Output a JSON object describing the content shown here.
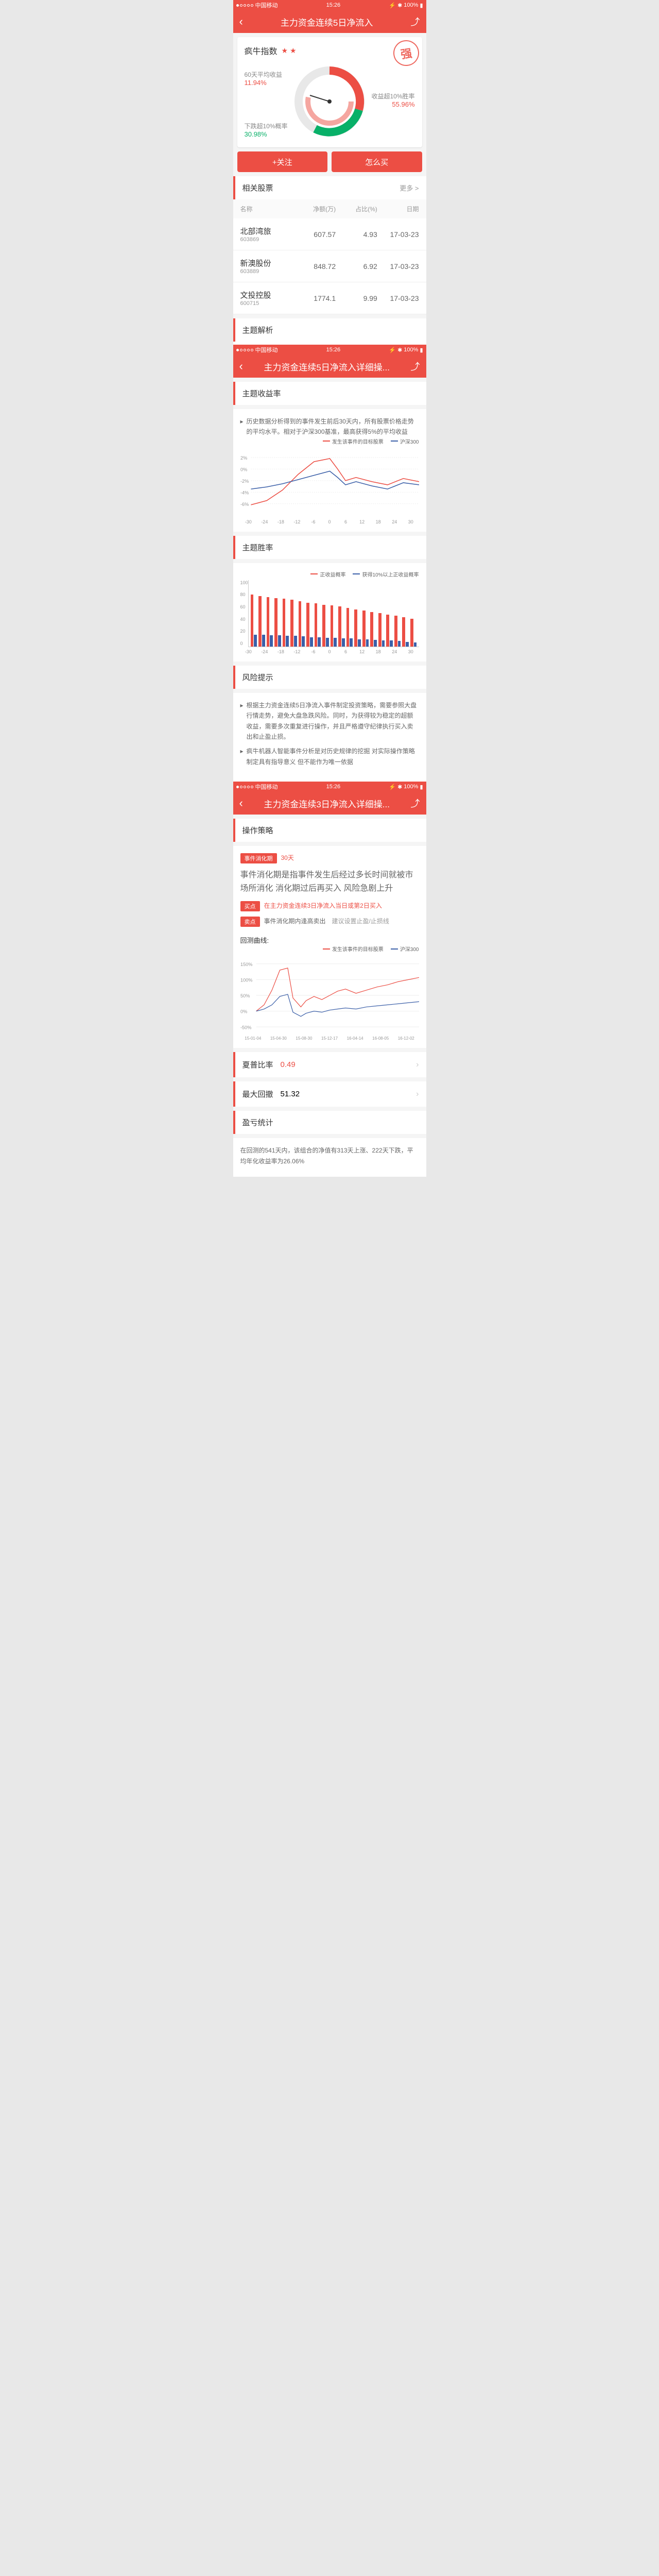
{
  "status": {
    "carrier": "中国移动",
    "time": "15:26",
    "battery": "100%"
  },
  "screen1": {
    "title": "主力资金连续5日净流入",
    "indexName": "疯牛指数",
    "stars": "★ ★",
    "stamp": "强",
    "metrics": {
      "avg60": {
        "label": "60天平均收益",
        "value": "11.94%",
        "color": "#ec4e44"
      },
      "winRate": {
        "label": "收益超10%胜率",
        "value": "55.96%",
        "color": "#ec4e44"
      },
      "dropRate": {
        "label": "下跌超10%概率",
        "value": "30.98%",
        "color": "#08b068"
      }
    },
    "gauge": {
      "c1": "#ec4e44",
      "c2": "#08b068",
      "c3": "#f5a6a0",
      "bg": "#e8e8e8"
    },
    "buttons": {
      "follow": "+关注",
      "howBuy": "怎么买"
    },
    "stocks": {
      "header": "相关股票",
      "more": "更多 >",
      "cols": [
        "名称",
        "净额(万)",
        "占比(%)",
        "日期"
      ],
      "rows": [
        {
          "name": "北部湾旅",
          "code": "603869",
          "v1": "607.57",
          "v2": "4.93",
          "v3": "17-03-23"
        },
        {
          "name": "新澳股份",
          "code": "603889",
          "v1": "848.72",
          "v2": "6.92",
          "v3": "17-03-23"
        },
        {
          "name": "文投控股",
          "code": "600715",
          "v1": "1774.1",
          "v2": "9.99",
          "v3": "17-03-23"
        }
      ]
    },
    "analysis": "主题解析"
  },
  "screen2": {
    "title": "主力资金连续5日净流入详细操...",
    "yield": {
      "header": "主题收益率",
      "desc": "历史数据分析得到的事件发生前后30天内，所有股票价格走势的平均水平。相对于沪深300基准，最高获得5%的平均收益",
      "legend": [
        {
          "label": "发生该事件的目标股票",
          "color": "#ec4e44"
        },
        {
          "label": "沪深300",
          "color": "#3b5fa8"
        }
      ],
      "yTicks": [
        "2%",
        "0%",
        "-2%",
        "-4%",
        "-6%"
      ],
      "xTicks": [
        "-30",
        "-24",
        "-18",
        "-12",
        "-6",
        "0",
        "6",
        "12",
        "18",
        "24",
        "30"
      ]
    },
    "winSection": {
      "header": "主题胜率",
      "legend": [
        {
          "label": "正收益概率",
          "color": "#ec4e44"
        },
        {
          "label": "获得10%以上正收益概率",
          "color": "#3b5fa8"
        }
      ],
      "yMax": 100,
      "bars": [
        [
          78,
          18
        ],
        [
          76,
          18
        ],
        [
          74,
          17
        ],
        [
          73,
          17
        ],
        [
          72,
          16
        ],
        [
          70,
          16
        ],
        [
          68,
          15
        ],
        [
          66,
          14
        ],
        [
          65,
          14
        ],
        [
          63,
          13
        ],
        [
          62,
          13
        ],
        [
          60,
          12
        ],
        [
          58,
          12
        ],
        [
          56,
          11
        ],
        [
          54,
          11
        ],
        [
          52,
          10
        ],
        [
          50,
          9
        ],
        [
          48,
          9
        ],
        [
          46,
          8
        ],
        [
          44,
          7
        ],
        [
          42,
          6
        ]
      ],
      "xTicks": [
        "-30",
        "-24",
        "-18",
        "-12",
        "-6",
        "0",
        "6",
        "12",
        "18",
        "24",
        "30"
      ]
    },
    "risk": {
      "header": "风险提示",
      "bullets": [
        "根据主力资金连续5日净流入事件制定投资策略，需要参照大盘行情走势，避免大盘急跌风险。同时，为获得较为稳定的超额收益，需要多次重复进行操作，并且严格遵守纪律执行买入卖出和止盈止损。",
        "疯牛机器人智能事件分析是对历史规律的挖掘 对实际操作策略制定具有指导意义 但不能作为唯一依据"
      ]
    }
  },
  "screen3": {
    "title": "主力资金连续3日净流入详细操...",
    "strategy": {
      "header": "操作策略",
      "period": {
        "tag": "事件消化期",
        "value": "30天",
        "desc": "事件消化期是指事件发生后经过多长时间就被市场所消化 消化期过后再买入 风险急剧上升"
      },
      "buy": {
        "tag": "买点",
        "text": "在主力资金连续3日净流入当日或第2日买入"
      },
      "sell": {
        "tag": "卖点",
        "text": "事件消化期内逢高卖出",
        "note": "建议设置止盈/止损线"
      }
    },
    "returnChart": {
      "title": "回测曲线:",
      "legend": [
        {
          "label": "发生该事件的目标股票",
          "color": "#ec4e44"
        },
        {
          "label": "沪深300",
          "color": "#3b5fa8"
        }
      ],
      "yTicks": [
        "150%",
        "100%",
        "50%",
        "0%",
        "-50%"
      ],
      "xTicks": [
        "15-01-04",
        "15-04-30",
        "15-08-30",
        "15-12-17",
        "16-04-14",
        "16-08-05",
        "16-12-02"
      ]
    },
    "sharpe": {
      "label": "夏普比率",
      "value": "0.49",
      "color": "#ec4e44"
    },
    "drawdown": {
      "label": "最大回撤",
      "value": "51.32",
      "color": "#333"
    },
    "pnl": {
      "header": "盈亏统计",
      "text": "在回测的541天内，该组合的净值有313天上涨、222天下跌，平均年化收益率为26.06%"
    }
  }
}
